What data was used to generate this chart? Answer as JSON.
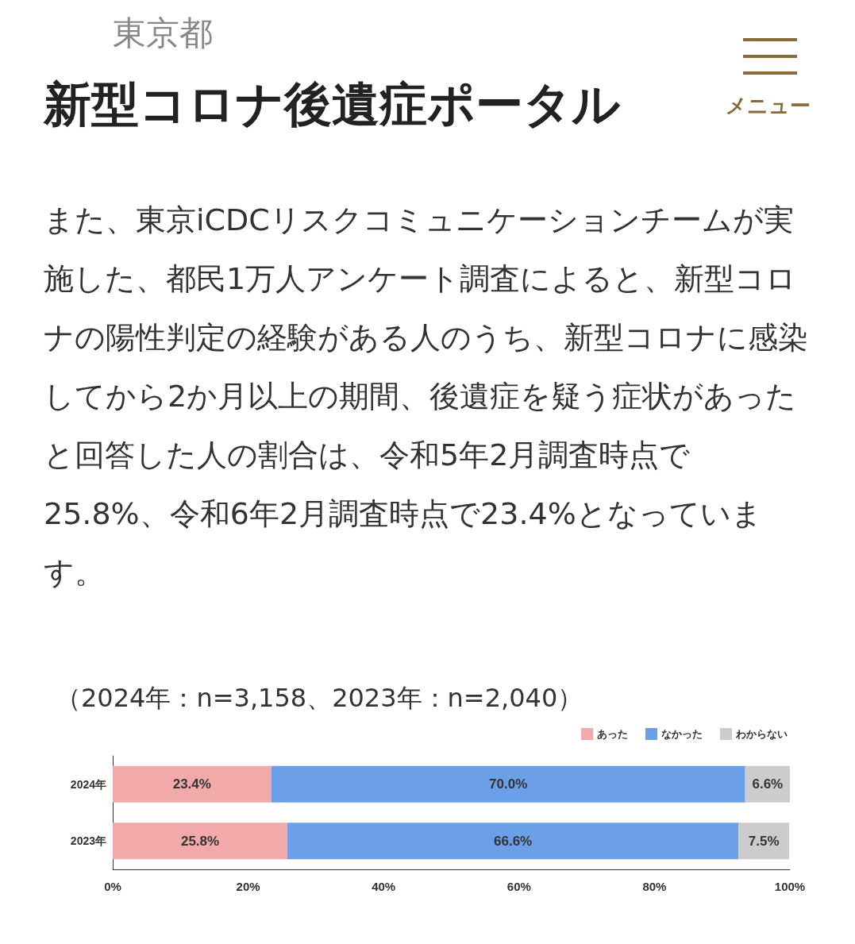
{
  "chart_data": {
    "type": "bar",
    "orientation": "horizontal",
    "stacked": true,
    "title": "新型コロナ後遺症ポータル",
    "subtitle": "また、東京iCDCリスクコミュニケーションチームが実施した、都民1万人アンケート調査によると、新型コロナの陽性判定の経験がある人のうち、新型コロナに感染してから2か月以上の期間、後遺症を疑う症状があったと回答した人の割合は、令和5年2月調査時点で25.8%、令和6年2月調査時点で23.4%となっています。",
    "annotations": [
      "東京都",
      "メニュー",
      "（2024年：n=3,158、2023年：n=2,040）"
    ],
    "categories": [
      "2024年",
      "2023年"
    ],
    "series": [
      {
        "name": "あった",
        "color": "#f2a9a9",
        "values": [
          23.4,
          25.8
        ],
        "value_labels": [
          "23.4%",
          "25.8%"
        ]
      },
      {
        "name": "なかった",
        "color": "#6b9fe8",
        "values": [
          70.0,
          66.6
        ],
        "value_labels": [
          "70.0%",
          "66.6%"
        ]
      },
      {
        "name": "わからない",
        "color": "#cccccc",
        "values": [
          6.6,
          7.5
        ],
        "value_labels": [
          "6.6%",
          "7.5%"
        ]
      }
    ],
    "xlim": [
      0,
      100
    ],
    "xticks": [
      {
        "value": 0,
        "label": "0%"
      },
      {
        "value": 20,
        "label": "20%"
      },
      {
        "value": 40,
        "label": "40%"
      },
      {
        "value": 60,
        "label": "60%"
      },
      {
        "value": 80,
        "label": "80%"
      },
      {
        "value": 100,
        "label": "100%"
      }
    ],
    "legend": "top right"
  }
}
